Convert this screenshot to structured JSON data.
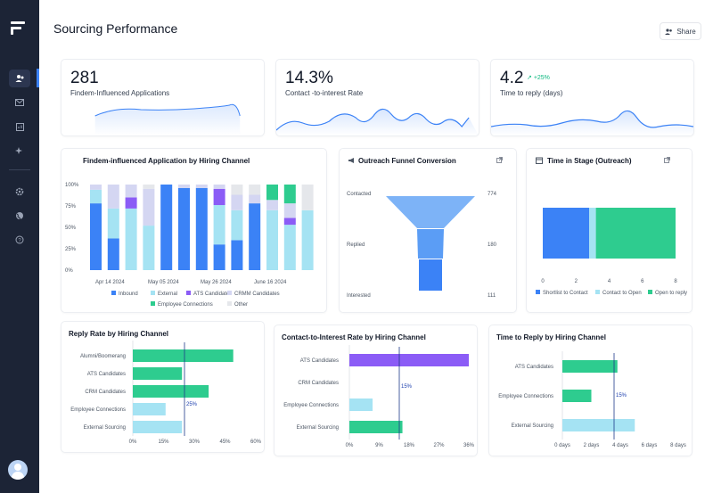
{
  "page": {
    "title": "Sourcing Performance",
    "share_label": "Share"
  },
  "sidebar": {
    "items": [
      "users-icon",
      "mail-icon",
      "reports-icon",
      "sparkle-icon",
      "settings-icon",
      "globe-icon",
      "help-icon"
    ]
  },
  "kpis": [
    {
      "value": "281",
      "label": "Findem-Influenced Applications"
    },
    {
      "value": "14.3%",
      "label": "Contact -to-interest Rate"
    },
    {
      "value": "4.2",
      "label": "Time to reply (days)",
      "delta": "+25%"
    }
  ],
  "charts": {
    "hiring_channel": {
      "title": "Findem-influenced Application by Hiring Channel",
      "yticks": [
        "100%",
        "75%",
        "50%",
        "25%",
        "0%"
      ],
      "xticks": [
        "Apr 14 2024",
        "May 05 2024",
        "May 26 2024",
        "June 16 2024"
      ],
      "legend": [
        "Inbound",
        "External",
        "ATS Candidates",
        "CRMM Candidates",
        "Employee Connections",
        "Other"
      ],
      "colors": [
        "#3b82f6",
        "#a5e3f3",
        "#8b5cf6",
        "#d4d6f2",
        "#2ecc8f",
        "#e5e7eb"
      ]
    },
    "funnel": {
      "title": "Outreach Funnel Conversion",
      "stages": [
        {
          "label": "Contacted",
          "value": "774"
        },
        {
          "label": "Replied",
          "value": "180"
        },
        {
          "label": "Interested",
          "value": "111"
        }
      ]
    },
    "time_in_stage": {
      "title": "Time in Stage (Outreach)",
      "xticks": [
        "0",
        "2",
        "4",
        "6",
        "8"
      ],
      "legend": [
        "Shortlist to Contact",
        "Contact to Open",
        "Open to reply"
      ]
    },
    "reply_rate": {
      "title": "Reply Rate by Hiring Channel",
      "categories": [
        "Alumni/Boomerang",
        "ATS Candidates",
        "CRM Candidates",
        "Employee Connections",
        "External Sourcing"
      ],
      "xticks": [
        "0%",
        "15%",
        "30%",
        "45%",
        "60%"
      ],
      "marker": "25%"
    },
    "contact_interest": {
      "title": "Contact-to-Interest Rate by Hiring Channel",
      "categories": [
        "ATS Candidates",
        "CRM Candidates",
        "Employee Connections",
        "External Sourcing"
      ],
      "xticks": [
        "0%",
        "9%",
        "18%",
        "27%",
        "36%"
      ],
      "marker": "15%"
    },
    "time_to_reply": {
      "title": "Time to Reply by Hiring Channel",
      "categories": [
        "ATS Candidates",
        "Employee Connections",
        "External Sourcing"
      ],
      "xticks": [
        "0 days",
        "2 days",
        "4 days",
        "6 days",
        "8 days"
      ],
      "marker": "15%"
    }
  },
  "chart_data": [
    {
      "type": "bar",
      "title": "Findem-influenced Application by Hiring Channel",
      "stacked": true,
      "ylim": [
        0,
        100
      ],
      "categories": [
        "1",
        "2",
        "3",
        "4",
        "5",
        "6",
        "7",
        "8",
        "9",
        "10",
        "11",
        "12",
        "13"
      ],
      "series": [
        {
          "name": "Inbound",
          "values": [
            78,
            37,
            0,
            0,
            100,
            96,
            96,
            30,
            35,
            78,
            0,
            0,
            0
          ]
        },
        {
          "name": "External",
          "values": [
            16,
            35,
            72,
            52,
            0,
            0,
            0,
            46,
            35,
            0,
            70,
            53,
            70
          ]
        },
        {
          "name": "ATS Candidates",
          "values": [
            0,
            0,
            13,
            0,
            0,
            0,
            0,
            19,
            0,
            0,
            0,
            8,
            0
          ]
        },
        {
          "name": "CRMM Candidates",
          "values": [
            6,
            28,
            15,
            43,
            0,
            4,
            4,
            5,
            18,
            10,
            12,
            17,
            0
          ]
        },
        {
          "name": "Employee Connections",
          "values": [
            0,
            0,
            0,
            0,
            0,
            0,
            0,
            0,
            0,
            0,
            18,
            22,
            0
          ]
        },
        {
          "name": "Other",
          "values": [
            0,
            0,
            0,
            5,
            0,
            0,
            0,
            0,
            12,
            12,
            0,
            0,
            30
          ]
        }
      ]
    },
    {
      "type": "bar",
      "title": "Outreach Funnel Conversion",
      "categories": [
        "Contacted",
        "Replied",
        "Interested"
      ],
      "values": [
        774,
        180,
        111
      ]
    },
    {
      "type": "bar",
      "title": "Time in Stage (Outreach)",
      "stacked": true,
      "orientation": "horizontal",
      "xlim": [
        0,
        8
      ],
      "series": [
        {
          "name": "Shortlist to Contact",
          "values": [
            2.8
          ]
        },
        {
          "name": "Contact to Open",
          "values": [
            0.4
          ]
        },
        {
          "name": "Open to reply",
          "values": [
            4.8
          ]
        }
      ]
    },
    {
      "type": "bar",
      "title": "Reply Rate by Hiring Channel",
      "orientation": "horizontal",
      "categories": [
        "Alumni/Boomerang",
        "ATS Candidates",
        "CRM Candidates",
        "Employee Connections",
        "External Sourcing"
      ],
      "values": [
        49,
        24,
        37,
        16,
        24
      ],
      "xlim": [
        0,
        60
      ]
    },
    {
      "type": "bar",
      "title": "Contact-to-Interest Rate by Hiring Channel",
      "orientation": "horizontal",
      "categories": [
        "ATS Candidates",
        "CRM Candidates",
        "Employee Connections",
        "External Sourcing"
      ],
      "values": [
        36,
        0,
        7,
        16
      ],
      "xlim": [
        0,
        36
      ]
    },
    {
      "type": "bar",
      "title": "Time to Reply by Hiring Channel",
      "orientation": "horizontal",
      "categories": [
        "ATS Candidates",
        "Employee Connections",
        "External Sourcing"
      ],
      "values": [
        3.8,
        2.0,
        5.0
      ],
      "xlim": [
        0,
        8
      ]
    }
  ]
}
